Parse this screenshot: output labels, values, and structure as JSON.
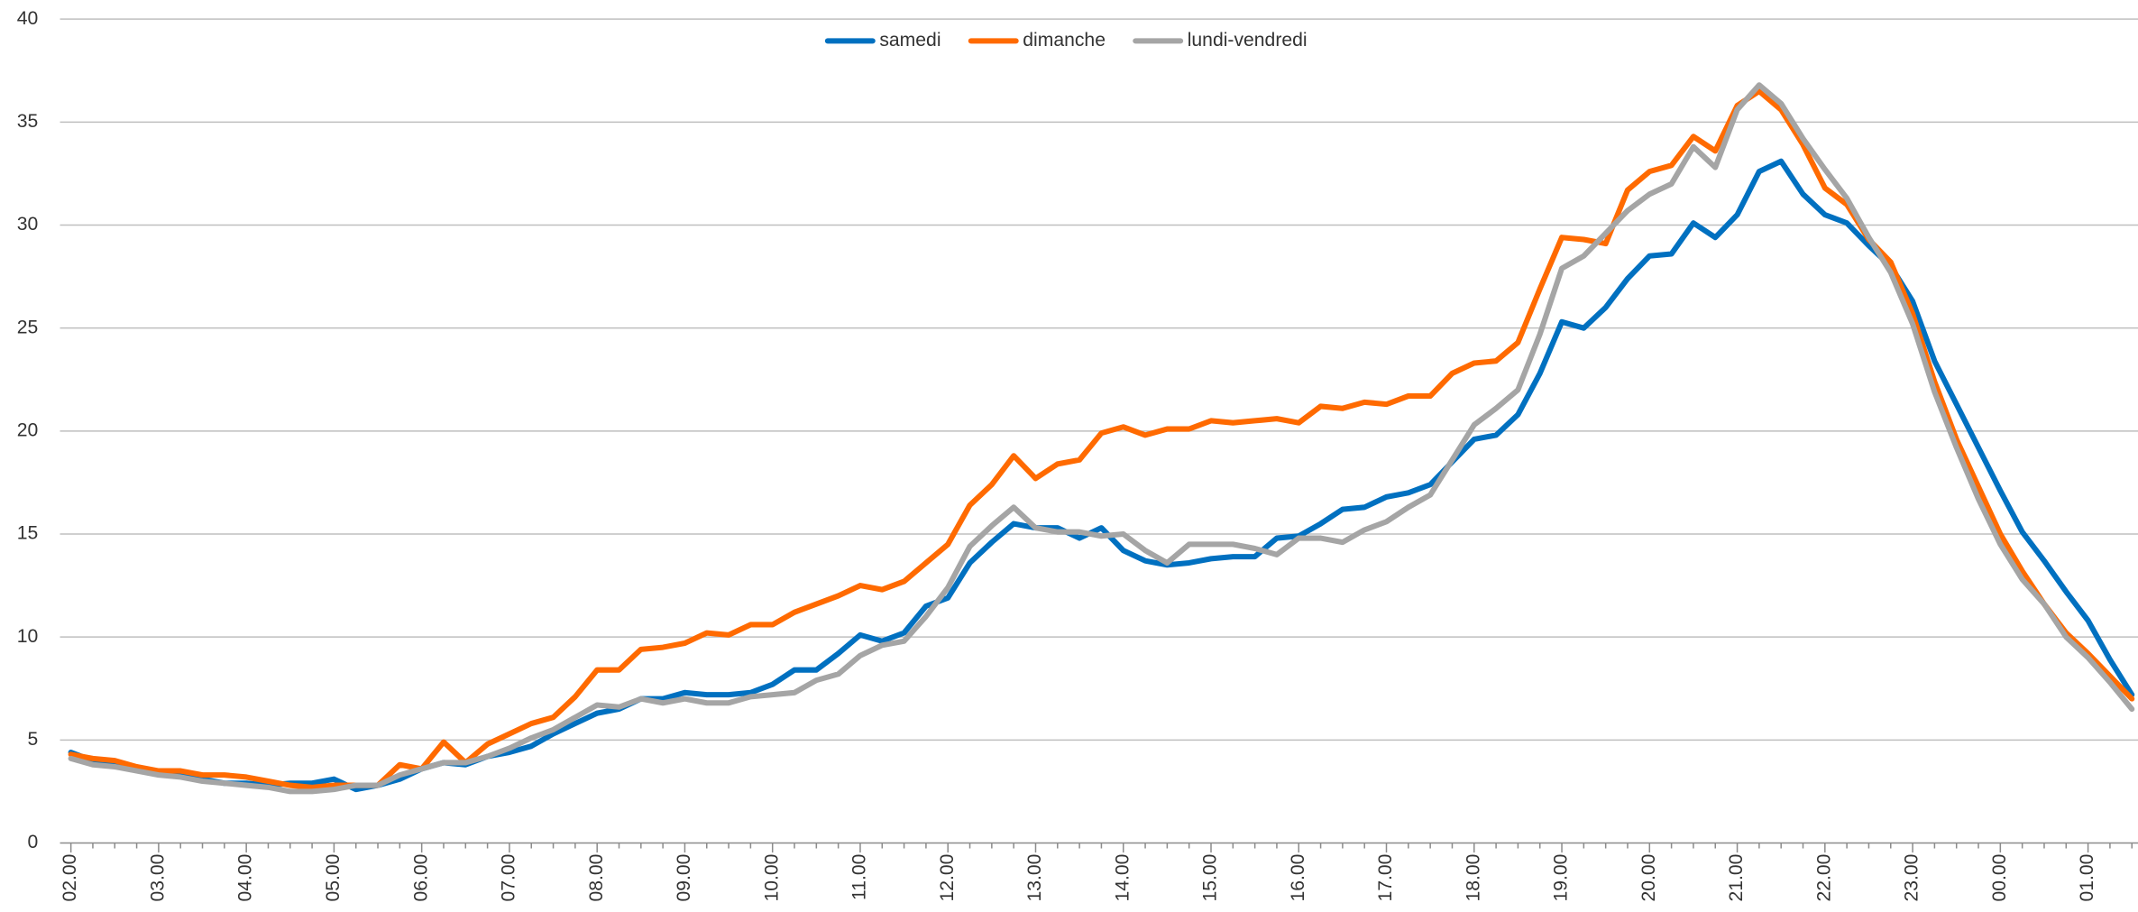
{
  "chart_data": {
    "type": "line",
    "categories": [
      "02.00",
      null,
      null,
      null,
      "03.00",
      null,
      null,
      null,
      "04.00",
      null,
      null,
      null,
      "05.00",
      null,
      null,
      null,
      "06.00",
      null,
      null,
      null,
      "07.00",
      null,
      null,
      null,
      "08.00",
      null,
      null,
      null,
      "09.00",
      null,
      null,
      null,
      "10.00",
      null,
      null,
      null,
      "11.00",
      null,
      null,
      null,
      "12.00",
      null,
      null,
      null,
      "13.00",
      null,
      null,
      null,
      "14.00",
      null,
      null,
      null,
      "15.00",
      null,
      null,
      null,
      "16.00",
      null,
      null,
      null,
      "17.00",
      null,
      null,
      null,
      "18.00",
      null,
      null,
      null,
      "19.00",
      null,
      null,
      null,
      "20.00",
      null,
      null,
      null,
      "21.00",
      null,
      null,
      null,
      "22.00",
      null,
      null,
      null,
      "23.00",
      null,
      null,
      null,
      "00.00",
      null,
      null,
      null,
      "01.00",
      null,
      null
    ],
    "series": [
      {
        "name": "samedi",
        "color": "#0070c0",
        "values": [
          4.4,
          4.0,
          3.9,
          3.6,
          3.4,
          3.3,
          3.1,
          2.9,
          2.9,
          2.8,
          2.9,
          2.9,
          3.1,
          2.6,
          2.8,
          3.1,
          3.6,
          3.9,
          3.8,
          4.2,
          4.4,
          4.7,
          5.3,
          5.8,
          6.3,
          6.5,
          7.0,
          7.0,
          7.3,
          7.2,
          7.2,
          7.3,
          7.7,
          8.4,
          8.4,
          9.2,
          10.1,
          9.8,
          10.2,
          11.5,
          11.9,
          13.6,
          14.6,
          15.5,
          15.3,
          15.3,
          14.8,
          15.3,
          14.2,
          13.7,
          13.5,
          13.6,
          13.8,
          13.9,
          13.9,
          14.8,
          14.9,
          15.5,
          16.2,
          16.3,
          16.8,
          17.0,
          17.4,
          18.5,
          19.6,
          19.8,
          20.8,
          22.8,
          25.3,
          25.0,
          26.0,
          27.4,
          28.5,
          28.6,
          30.1,
          29.4,
          30.5,
          32.6,
          33.1,
          31.5,
          30.5,
          30.1,
          29.0,
          28.0,
          26.3,
          23.4,
          21.3,
          19.2,
          17.1,
          15.1,
          13.7,
          12.2,
          10.8,
          8.9,
          7.2
        ]
      },
      {
        "name": "dimanche",
        "color": "#ff6a00",
        "values": [
          4.3,
          4.1,
          4.0,
          3.7,
          3.5,
          3.5,
          3.3,
          3.3,
          3.2,
          3.0,
          2.8,
          2.7,
          2.8,
          2.8,
          2.8,
          3.8,
          3.6,
          4.9,
          3.9,
          4.8,
          5.3,
          5.8,
          6.1,
          7.1,
          8.4,
          8.4,
          9.4,
          9.5,
          9.7,
          10.2,
          10.1,
          10.6,
          10.6,
          11.2,
          11.6,
          12.0,
          12.5,
          12.3,
          12.7,
          13.6,
          14.5,
          16.4,
          17.4,
          18.8,
          17.7,
          18.4,
          18.6,
          19.9,
          20.2,
          19.8,
          20.1,
          20.1,
          20.5,
          20.4,
          20.5,
          20.6,
          20.4,
          21.2,
          21.1,
          21.4,
          21.3,
          21.7,
          21.7,
          22.8,
          23.3,
          23.4,
          24.3,
          26.9,
          29.4,
          29.3,
          29.1,
          31.7,
          32.6,
          32.9,
          34.3,
          33.6,
          35.8,
          36.5,
          35.6,
          33.9,
          31.8,
          31.0,
          29.3,
          28.2,
          25.7,
          22.4,
          19.6,
          17.3,
          15.0,
          13.2,
          11.6,
          10.2,
          9.2,
          8.1,
          7.0
        ]
      },
      {
        "name": "lundi-vendredi",
        "color": "#a5a5a5",
        "values": [
          4.1,
          3.8,
          3.7,
          3.5,
          3.3,
          3.2,
          3.0,
          2.9,
          2.8,
          2.7,
          2.5,
          2.5,
          2.6,
          2.8,
          2.8,
          3.3,
          3.6,
          3.9,
          3.9,
          4.2,
          4.6,
          5.1,
          5.5,
          6.1,
          6.7,
          6.6,
          7.0,
          6.8,
          7.0,
          6.8,
          6.8,
          7.1,
          7.2,
          7.3,
          7.9,
          8.2,
          9.1,
          9.6,
          9.8,
          11.0,
          12.4,
          14.4,
          15.4,
          16.3,
          15.3,
          15.1,
          15.1,
          14.9,
          15.0,
          14.2,
          13.6,
          14.5,
          14.5,
          14.5,
          14.3,
          14.0,
          14.8,
          14.8,
          14.6,
          15.2,
          15.6,
          16.3,
          16.9,
          18.6,
          20.3,
          21.1,
          22.0,
          24.7,
          27.9,
          28.5,
          29.6,
          30.7,
          31.5,
          32.0,
          33.8,
          32.8,
          35.6,
          36.8,
          35.9,
          34.2,
          32.7,
          31.3,
          29.4,
          27.7,
          25.2,
          21.9,
          19.2,
          16.7,
          14.5,
          12.8,
          11.6,
          10.0,
          9.0,
          7.8,
          6.5
        ]
      }
    ],
    "ylim": [
      0,
      40
    ],
    "yticks": [
      0,
      5,
      10,
      15,
      20,
      25,
      30,
      35,
      40
    ],
    "grid": true,
    "legend": "top"
  }
}
